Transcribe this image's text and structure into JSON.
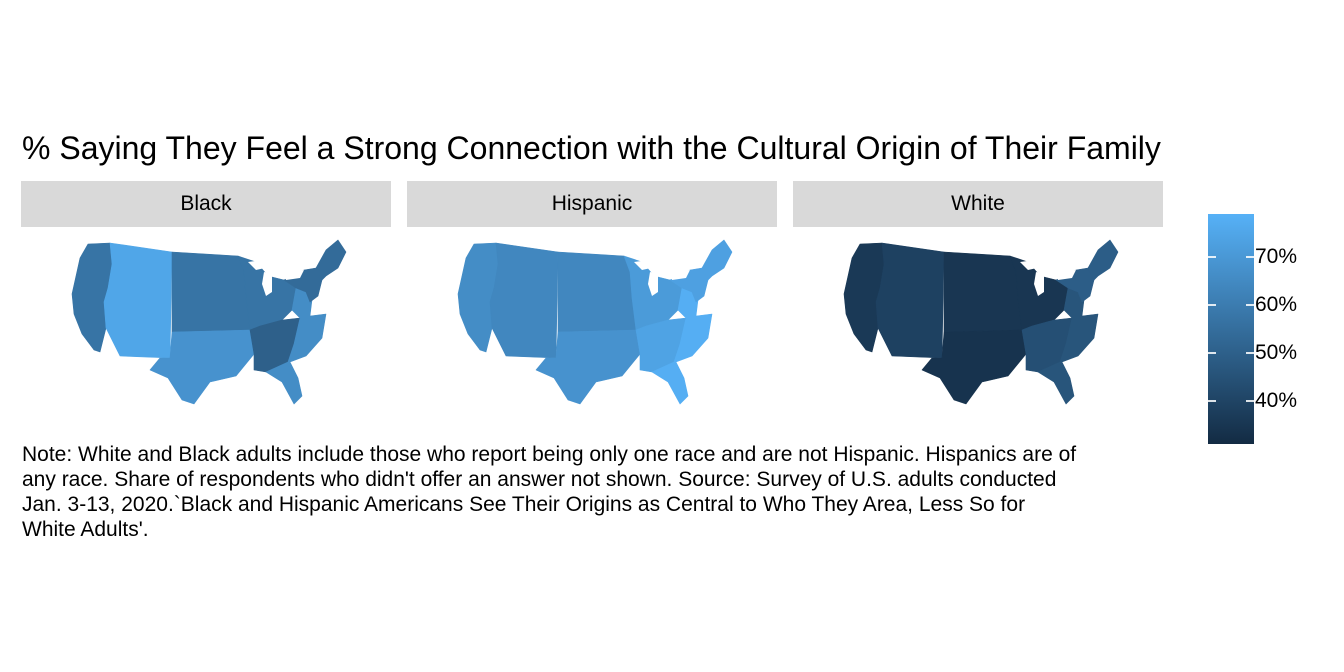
{
  "chart_data": {
    "type": "choropleth-facets",
    "title": "% Saying They Feel a Strong Connection with the Cultural Origin of Their Family",
    "facets": [
      {
        "name": "Black",
        "regions": {
          "Pacific": 57,
          "Mountain": 75,
          "West North Central": 57,
          "West South Central": 68,
          "East North Central": 57,
          "East South Central": 50,
          "South Atlantic": 66,
          "Middle Atlantic": 54,
          "New England": 54
        }
      },
      {
        "name": "Hispanic",
        "regions": {
          "Pacific": 66,
          "Mountain": 64,
          "West North Central": 64,
          "West South Central": 68,
          "East North Central": 71,
          "East South Central": 74,
          "South Atlantic": 78,
          "Middle Atlantic": 73,
          "New England": 73
        }
      },
      {
        "name": "White",
        "regions": {
          "Pacific": 36,
          "Mountain": 39,
          "West North Central": 35,
          "West South Central": 34,
          "East North Central": 35,
          "East South Central": 44,
          "South Atlantic": 46,
          "Middle Atlantic": 49,
          "New England": 49
        }
      }
    ],
    "legend": {
      "min": 31,
      "max": 79,
      "ticks": [
        40,
        50,
        60,
        70
      ],
      "tick_labels": [
        "40%",
        "50%",
        "60%",
        "70%"
      ],
      "low_color": "#132b43",
      "high_color": "#56b1f7",
      "position": "right"
    },
    "note": "Note: White and Black adults include those who report being only one race and are not Hispanic. Hispanics are of any race. Share of respondents who didn't offer an answer not shown. Source: Survey of U.S. adults conducted Jan. 3-13, 2020.`Black and Hispanic Americans See Their Origins as Central to Who They Area, Less So for White Adults'."
  }
}
